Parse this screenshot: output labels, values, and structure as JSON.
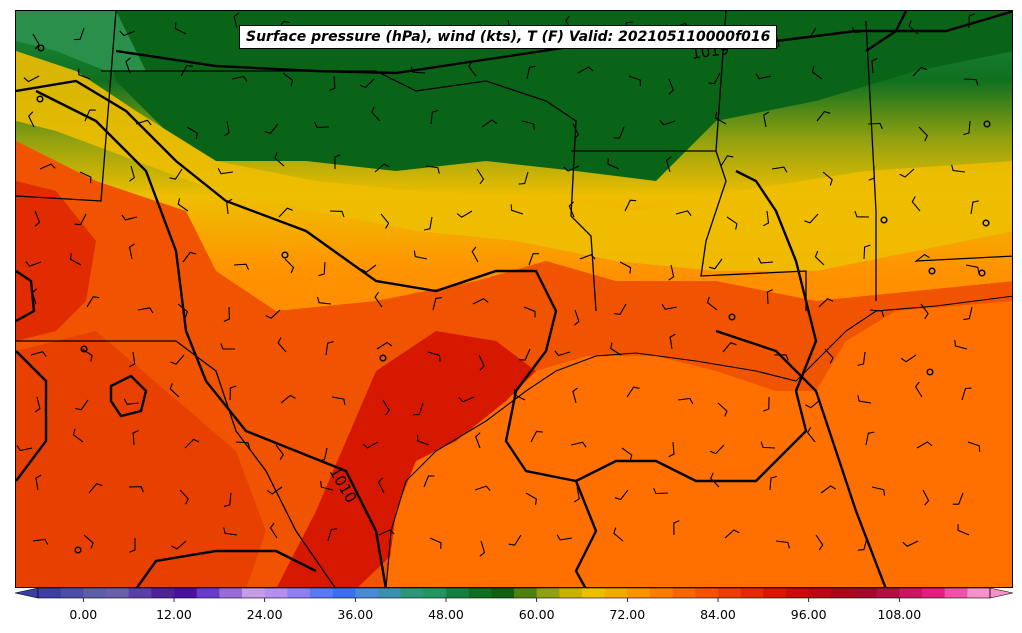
{
  "title": "Surface pressure (hPa), wind (kts), T (F) Valid: 202105110000f016",
  "isobar_labels": [
    "1019",
    "1010"
  ],
  "colorbar": {
    "min": -6,
    "max": 120,
    "step": 3,
    "ticks": [
      "0.00",
      "12.00",
      "24.00",
      "36.00",
      "48.00",
      "60.00",
      "72.00",
      "84.00",
      "96.00",
      "108.00"
    ],
    "tick_values": [
      0,
      12,
      24,
      36,
      48,
      60,
      72,
      84,
      96,
      108
    ],
    "colors": [
      "#3a3fa8",
      "#4a4ea8",
      "#5d5ea8",
      "#6a5fa9",
      "#5b3fa8",
      "#4d2299",
      "#4a0fa0",
      "#6a3ad0",
      "#9a6ad8",
      "#c79be8",
      "#b58ef0",
      "#8f7ff5",
      "#5a7af5",
      "#3a6ff0",
      "#4a88d8",
      "#3a90b0",
      "#2a9878",
      "#1f9560",
      "#148040",
      "#0f7020",
      "#106010",
      "#4f8010",
      "#8fa010",
      "#c8b000",
      "#eebe00",
      "#f5a800",
      "#ff9200",
      "#ff7a00",
      "#f56800",
      "#f05400",
      "#e84000",
      "#e02c00",
      "#d61800",
      "#c80e08",
      "#b80810",
      "#a80818",
      "#a00a28",
      "#b01040",
      "#c81860",
      "#e02080",
      "#f050a8",
      "#f690c8"
    ]
  },
  "colors": {
    "isobar": "#000000",
    "coast": "#000000"
  }
}
